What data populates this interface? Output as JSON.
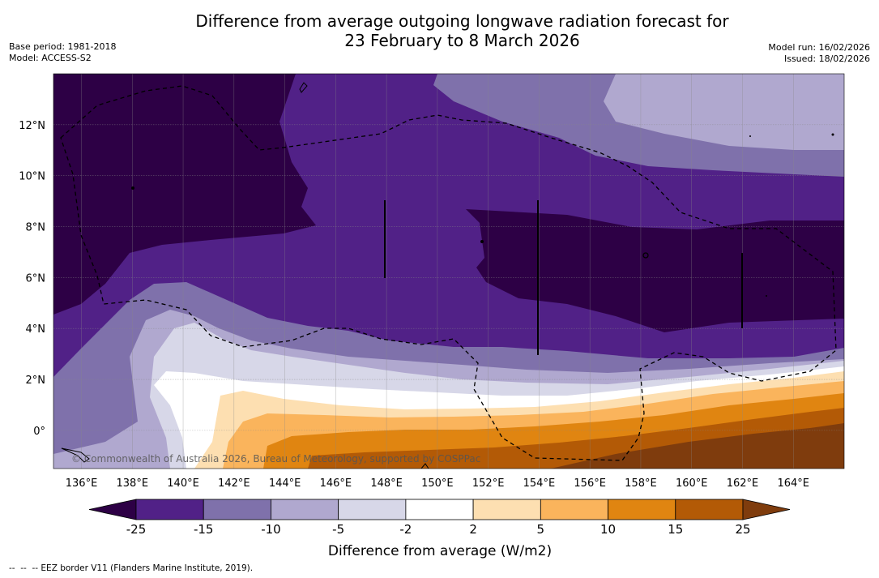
{
  "title_line1": "Difference from average outgoing longwave radiation forecast for",
  "title_line2": "23 February to 8 March 2026",
  "base_period": "Base period: 1981-2018",
  "model": "Model: ACCESS-S2",
  "model_run": "Model run: 16/02/2026",
  "issued": "Issued: 18/02/2026",
  "copyright": "© Commonwealth of Australia 2026, Bureau of Meteorology, supported by COSPPac",
  "footnote": "--  --  -- EEZ border V11 (Flanders Marine Institute, 2019).",
  "lat_labels": [
    "12°N",
    "10°N",
    "8°N",
    "6°N",
    "4°N",
    "2°N",
    "0°"
  ],
  "lat_values": [
    12,
    10,
    8,
    6,
    4,
    2,
    0
  ],
  "lon_labels": [
    "136°E",
    "138°E",
    "140°E",
    "142°E",
    "144°E",
    "146°E",
    "148°E",
    "150°E",
    "152°E",
    "154°E",
    "156°E",
    "158°E",
    "160°E",
    "162°E",
    "164°E"
  ],
  "lon_values": [
    136,
    138,
    140,
    142,
    144,
    146,
    148,
    150,
    152,
    154,
    156,
    158,
    160,
    162,
    164
  ],
  "map_extent": {
    "lon_min": 134.9,
    "lon_max": 166.0,
    "lat_min": -1.5,
    "lat_max": 14.0
  },
  "colorbar": {
    "title": "Difference from average (W/m2)",
    "ticks": [
      "-25",
      "-15",
      "-10",
      "-5",
      "-2",
      "2",
      "5",
      "10",
      "15",
      "25"
    ],
    "colors": [
      "#2d0045",
      "#512187",
      "#7f71ab",
      "#b0a8cf",
      "#d7d7e8",
      "#ffffff",
      "#fddfb1",
      "#fab45c",
      "#e08511",
      "#b35a06",
      "#7f3c0d"
    ]
  },
  "zones": [
    {
      "level": "-25",
      "color": "#2d0045"
    },
    {
      "level": "-15",
      "color": "#512187"
    },
    {
      "level": "-10",
      "color": "#7f71ab"
    },
    {
      "level": "-5",
      "color": "#b0a8cf"
    },
    {
      "level": "-2",
      "color": "#d7d7e8"
    },
    {
      "level": "2",
      "color": "#ffffff"
    },
    {
      "level": "5",
      "color": "#fddfb1"
    },
    {
      "level": "10",
      "color": "#fab45c"
    },
    {
      "level": "15",
      "color": "#e08511"
    },
    {
      "level": "25",
      "color": "#b35a06"
    }
  ],
  "colors": {
    "land": "#000000",
    "grid": "#888888"
  }
}
